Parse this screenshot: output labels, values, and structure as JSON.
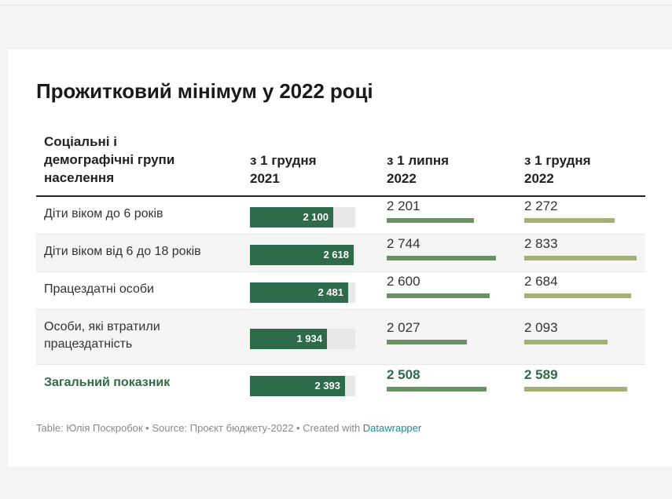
{
  "title": "Прожитковий мінімум у 2022 році",
  "columns": {
    "group": [
      "Соціальні і",
      "демографічні групи",
      "населення"
    ],
    "c1": [
      "з 1 грудня",
      "2021"
    ],
    "c2": [
      "з 1 липня",
      "2022"
    ],
    "c3": [
      "з 1 грудня",
      "2022"
    ]
  },
  "colors": {
    "bar_main": "#2d6b4a",
    "bar_bg": "#e8e8e8",
    "bar_july": "#6b9162",
    "bar_dec": "#a2b275",
    "total_text": "#2e6b47"
  },
  "bar_max": 2650,
  "rows": [
    {
      "label": [
        "Діти віком до 6 років"
      ],
      "v1": "2 100",
      "v2": "2 201",
      "v3": "2 272",
      "total": false
    },
    {
      "label": [
        "Діти віком від 6 до 18 років"
      ],
      "v1": "2 618",
      "v2": "2 744",
      "v3": "2 833",
      "total": false
    },
    {
      "label": [
        "Працездатні особи"
      ],
      "v1": "2 481",
      "v2": "2 600",
      "v3": "2 684",
      "total": false
    },
    {
      "label": [
        "Особи, які втратили",
        "працездатність"
      ],
      "v1": "1 934",
      "v2": "2 027",
      "v3": "2 093",
      "total": false
    },
    {
      "label": [
        "Загальний показник"
      ],
      "v1": "2 393",
      "v2": "2 508",
      "v3": "2 589",
      "total": true
    }
  ],
  "footer": {
    "prefix": "Table: Юлія Поскробок • Source: Проєкт бюджету-2022 • Created with ",
    "link": "Datawrapper"
  },
  "chart_data": {
    "type": "table",
    "title": "Прожитковий мінімум у 2022 році",
    "categories": [
      "Діти віком до 6 років",
      "Діти віком від 6 до 18 років",
      "Працездатні особи",
      "Особи, які втратили працездатність",
      "Загальний показник"
    ],
    "series": [
      {
        "name": "з 1 грудня 2021",
        "values": [
          2100,
          2618,
          2481,
          1934,
          2393
        ]
      },
      {
        "name": "з 1 липня 2022",
        "values": [
          2201,
          2744,
          2600,
          2027,
          2508
        ]
      },
      {
        "name": "з 1 грудня 2022",
        "values": [
          2272,
          2833,
          2684,
          2093,
          2589
        ]
      }
    ]
  }
}
